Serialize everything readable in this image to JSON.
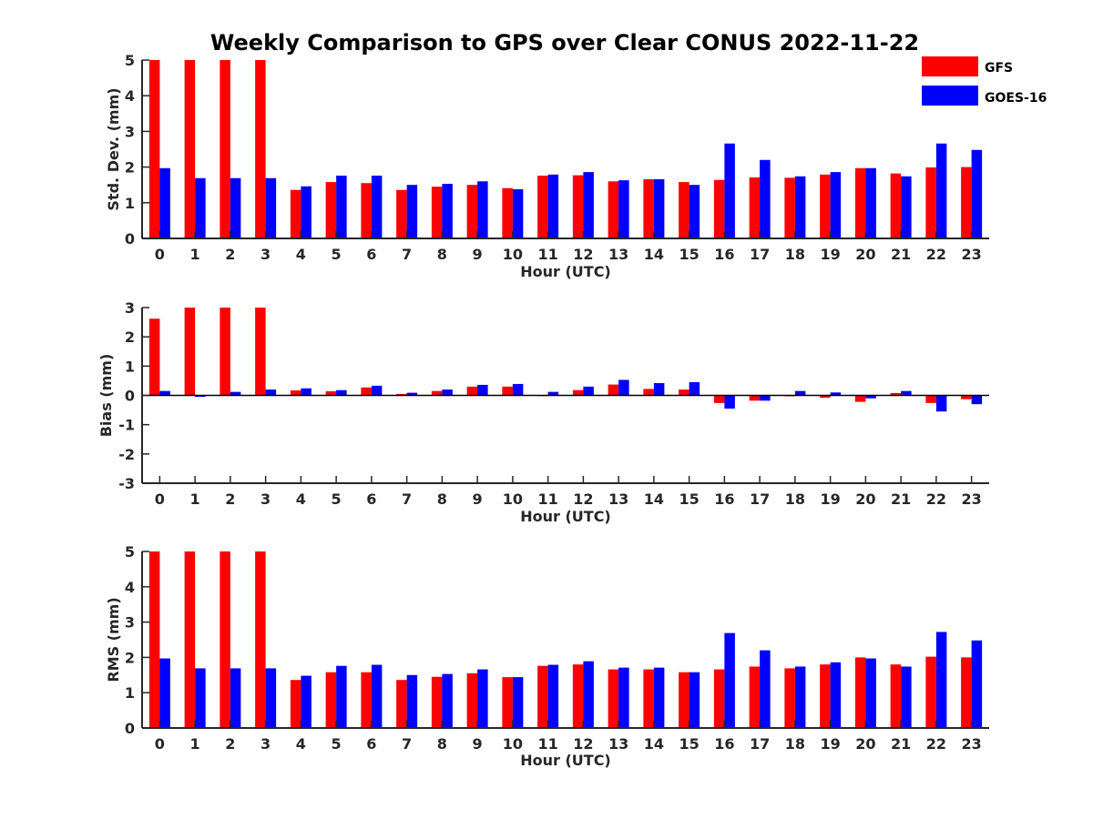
{
  "title": "Weekly Comparison to GPS over Clear CONUS 2022-11-22",
  "legend": {
    "position": "top-right",
    "entries": [
      {
        "name": "GFS",
        "color": "#ff0000"
      },
      {
        "name": "GOES-16",
        "color": "#0000ff"
      }
    ]
  },
  "chart_data": [
    {
      "type": "bar",
      "title": "Weekly Comparison to GPS over Clear CONUS 2022-11-22",
      "xlabel": "Hour (UTC)",
      "ylabel": "Std. Dev. (mm)",
      "ylim": [
        0,
        5
      ],
      "yticks": [
        0,
        1,
        2,
        3,
        4,
        5
      ],
      "categories": [
        "0",
        "1",
        "2",
        "3",
        "4",
        "5",
        "6",
        "7",
        "8",
        "9",
        "10",
        "11",
        "12",
        "13",
        "14",
        "15",
        "16",
        "17",
        "18",
        "19",
        "20",
        "21",
        "22",
        "23"
      ],
      "series": [
        {
          "name": "GFS",
          "color": "#ff0000",
          "values": [
            5,
            5,
            5,
            5,
            1.36,
            1.58,
            1.55,
            1.36,
            1.45,
            1.5,
            1.41,
            1.76,
            1.77,
            1.6,
            1.66,
            1.58,
            1.64,
            1.71,
            1.7,
            1.79,
            1.97,
            1.82,
            1.99,
            2.0
          ]
        },
        {
          "name": "GOES-16",
          "color": "#0000ff",
          "values": [
            1.97,
            1.69,
            1.69,
            1.69,
            1.46,
            1.76,
            1.76,
            1.5,
            1.53,
            1.6,
            1.38,
            1.79,
            1.86,
            1.63,
            1.66,
            1.5,
            2.66,
            2.2,
            1.74,
            1.86,
            1.97,
            1.74,
            2.66,
            2.48
          ]
        }
      ]
    },
    {
      "type": "bar",
      "xlabel": "Hour (UTC)",
      "ylabel": "Bias (mm)",
      "ylim": [
        -3,
        3
      ],
      "yticks": [
        -3,
        -2,
        -1,
        0,
        1,
        2,
        3
      ],
      "categories": [
        "0",
        "1",
        "2",
        "3",
        "4",
        "5",
        "6",
        "7",
        "8",
        "9",
        "10",
        "11",
        "12",
        "13",
        "14",
        "15",
        "16",
        "17",
        "18",
        "19",
        "20",
        "21",
        "22",
        "23"
      ],
      "series": [
        {
          "name": "GFS",
          "color": "#ff0000",
          "values": [
            2.62,
            3,
            3,
            3,
            0.17,
            0.14,
            0.27,
            0.05,
            0.15,
            0.3,
            0.3,
            0.0,
            0.18,
            0.37,
            0.22,
            0.2,
            -0.26,
            -0.18,
            -0.03,
            -0.08,
            -0.22,
            0.08,
            -0.26,
            -0.13
          ]
        },
        {
          "name": "GOES-16",
          "color": "#0000ff",
          "values": [
            0.15,
            -0.05,
            0.12,
            0.2,
            0.24,
            0.18,
            0.33,
            0.09,
            0.2,
            0.36,
            0.39,
            0.12,
            0.3,
            0.53,
            0.42,
            0.45,
            -0.45,
            -0.18,
            0.15,
            0.1,
            -0.1,
            0.15,
            -0.55,
            -0.3
          ]
        }
      ]
    },
    {
      "type": "bar",
      "xlabel": "Hour (UTC)",
      "ylabel": "RMS (mm)",
      "ylim": [
        0,
        5
      ],
      "yticks": [
        0,
        1,
        2,
        3,
        4,
        5
      ],
      "categories": [
        "0",
        "1",
        "2",
        "3",
        "4",
        "5",
        "6",
        "7",
        "8",
        "9",
        "10",
        "11",
        "12",
        "13",
        "14",
        "15",
        "16",
        "17",
        "18",
        "19",
        "20",
        "21",
        "22",
        "23"
      ],
      "series": [
        {
          "name": "GFS",
          "color": "#ff0000",
          "values": [
            5,
            5,
            5,
            5,
            1.36,
            1.58,
            1.58,
            1.36,
            1.45,
            1.55,
            1.44,
            1.76,
            1.8,
            1.66,
            1.66,
            1.58,
            1.66,
            1.74,
            1.69,
            1.8,
            2.0,
            1.8,
            2.02,
            2.0
          ]
        },
        {
          "name": "GOES-16",
          "color": "#0000ff",
          "values": [
            1.97,
            1.69,
            1.69,
            1.69,
            1.48,
            1.76,
            1.79,
            1.5,
            1.53,
            1.66,
            1.44,
            1.79,
            1.89,
            1.71,
            1.71,
            1.58,
            2.69,
            2.2,
            1.74,
            1.86,
            1.97,
            1.74,
            2.72,
            2.48
          ]
        }
      ]
    }
  ]
}
